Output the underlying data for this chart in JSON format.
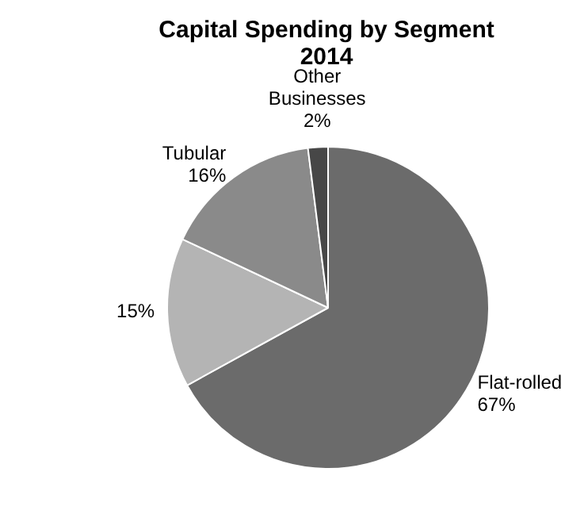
{
  "chart_data": {
    "type": "pie",
    "title": "Capital Spending by Segment\n2014",
    "categories": [
      "Flat-rolled",
      null,
      "Tubular",
      "Other\nBusinesses"
    ],
    "values": [
      67,
      15,
      16,
      2
    ],
    "value_labels": [
      "67%",
      "15%",
      "16%",
      "2%"
    ],
    "colors": [
      "#6b6b6b",
      "#b4b4b4",
      "#8a8a8a",
      "#474747"
    ],
    "legend": false
  }
}
